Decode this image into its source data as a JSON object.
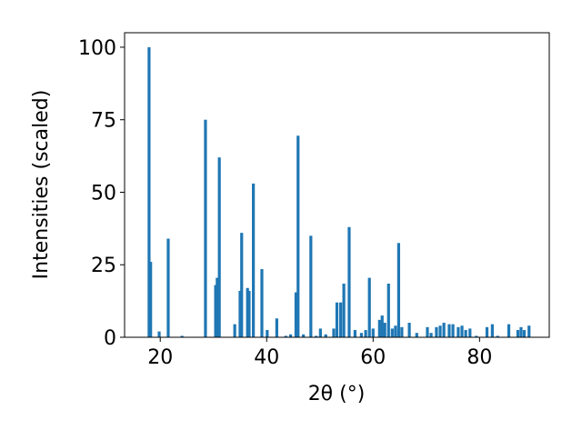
{
  "chart_data": {
    "type": "bar",
    "xlabel": "2θ (°)",
    "ylabel": "Intensities (scaled)",
    "color": "#1f77b4",
    "x": [
      17.9,
      18.2,
      19.8,
      21.5,
      24.1,
      28.5,
      30.4,
      30.7,
      31.1,
      34.0,
      35.0,
      35.3,
      36.4,
      36.7,
      37.5,
      39.1,
      40.1,
      41.9,
      43.6,
      44.5,
      45.5,
      45.9,
      46.9,
      48.3,
      49.3,
      50.1,
      51.1,
      52.6,
      53.2,
      53.9,
      54.5,
      55.5,
      56.6,
      57.8,
      58.6,
      59.3,
      60.0,
      61.2,
      61.7,
      62.2,
      62.9,
      63.6,
      64.2,
      64.8,
      65.4,
      66.8,
      68.2,
      70.2,
      70.9,
      71.9,
      72.6,
      73.3,
      74.3,
      75.0,
      76.0,
      76.7,
      77.4,
      78.2,
      79.4,
      81.4,
      82.4,
      83.4,
      85.5,
      87.2,
      87.8,
      88.4,
      89.3
    ],
    "values": [
      100,
      26,
      2,
      34,
      0.5,
      75,
      18,
      20.5,
      62,
      4.5,
      16,
      36,
      17,
      16,
      53,
      23.5,
      2.5,
      6.5,
      0.5,
      1,
      15.5,
      69.5,
      1,
      35,
      0.5,
      3,
      1,
      3,
      12,
      12,
      18.5,
      38,
      2.5,
      1.5,
      2.5,
      20.5,
      3,
      6,
      7.5,
      5,
      18.5,
      3,
      4,
      32.5,
      3.5,
      5,
      1.5,
      3.5,
      1.5,
      3.5,
      4,
      5,
      4.5,
      4.5,
      3.5,
      4,
      2.5,
      3,
      0.5,
      3.5,
      4.5,
      0.5,
      4.5,
      2.5,
      3.5,
      2.5,
      4
    ],
    "xlim": [
      13.3,
      93.1
    ],
    "ylim": [
      0,
      105
    ],
    "xticks": [
      20,
      40,
      60,
      80
    ],
    "yticks": [
      0,
      25,
      50,
      75,
      100
    ]
  }
}
